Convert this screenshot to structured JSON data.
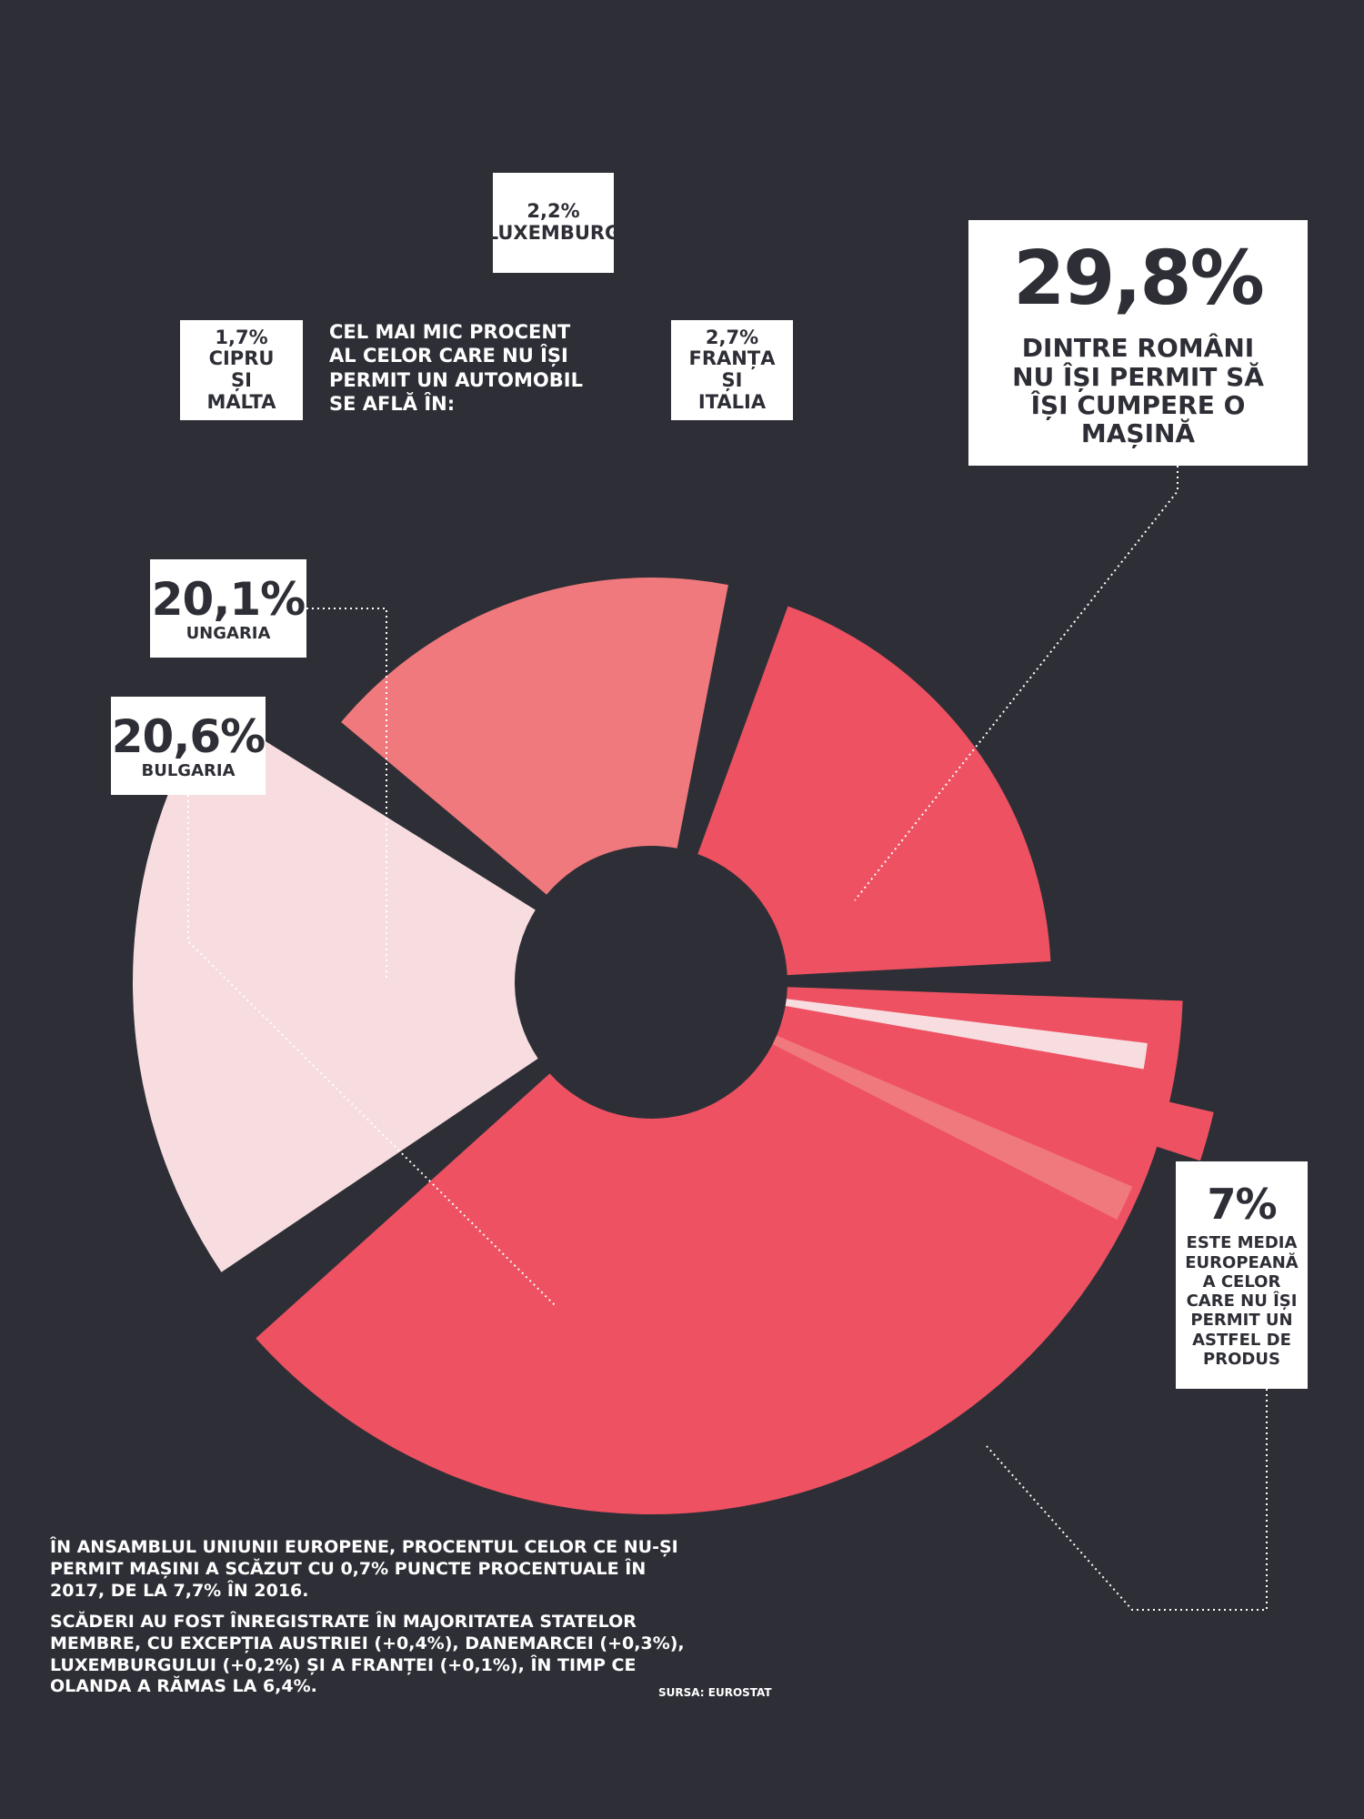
{
  "chart_data": {
    "type": "pie",
    "title": "",
    "categories": [
      "România",
      "Media europeană",
      "Bulgaria",
      "Ungaria",
      "Cipru și Malta",
      "Luxemburg",
      "Franța și Italia"
    ],
    "values": [
      29.8,
      7,
      20.6,
      20.1,
      1.7,
      2.2,
      2.7
    ],
    "value_labels": [
      "29,8%",
      "7%",
      "20,6%",
      "20,1%",
      "1,7%",
      "2,2%",
      "2,7%"
    ],
    "colors": {
      "background": "#2e2f36",
      "strong": "#ee5162",
      "medium": "#f0797d",
      "pale": "#f7dde0",
      "box": "#ffffff",
      "box_text": "#2e2f36"
    },
    "annotations": {
      "romania": {
        "value": "29,8%",
        "text": "DINTRE ROMÂNI NU ÎȘI PERMIT SĂ ÎȘI CUMPERE O MAȘINĂ"
      },
      "eu_average": {
        "value": "7%",
        "text": "ESTE MEDIA EUROPEANĂ A CELOR CARE NU ÎȘI PERMIT UN ASTFEL DE PRODUS"
      },
      "bulgaria": {
        "value": "20,6%",
        "label": "BULGARIA"
      },
      "ungaria": {
        "value": "20,1%",
        "label": "UNGARIA"
      },
      "cipru_malta": {
        "value": "1,7%",
        "label": "CIPRU ȘI MALTA"
      },
      "luxemburg": {
        "value": "2,2%",
        "label": "LUXEMBURG"
      },
      "franta_italia": {
        "value": "2,7%",
        "label": "FRANȚA ȘI ITALIA"
      },
      "min_note": "CEL MAI MIC PROCENT AL CELOR CARE NU ÎȘI PERMIT UN AUTOMOBIL SE AFLĂ ÎN:"
    }
  },
  "footer": {
    "paragraph_1": "ÎN ANSAMBLUL UNIUNII EUROPENE, PROCENTUL CELOR CE NU-ȘI PERMIT MAȘINI A SCĂZUT CU 0,7% PUNCTE PROCENTUALE ÎN 2017, DE LA 7,7% ÎN 2016.",
    "paragraph_2": "SCĂDERI AU FOST ÎNREGISTRATE ÎN MAJORITATEA STATELOR MEMBRE, CU EXCEPȚIA AUSTRIEI (+0,4%), DANEMARCEI (+0,3%), LUXEMBURGULUI (+0,2%) ȘI A FRANȚEI (+0,1%), ÎN TIMP CE OLANDA A RĂMAS LA 6,4%.",
    "source": "SURSA: EUROSTAT"
  }
}
